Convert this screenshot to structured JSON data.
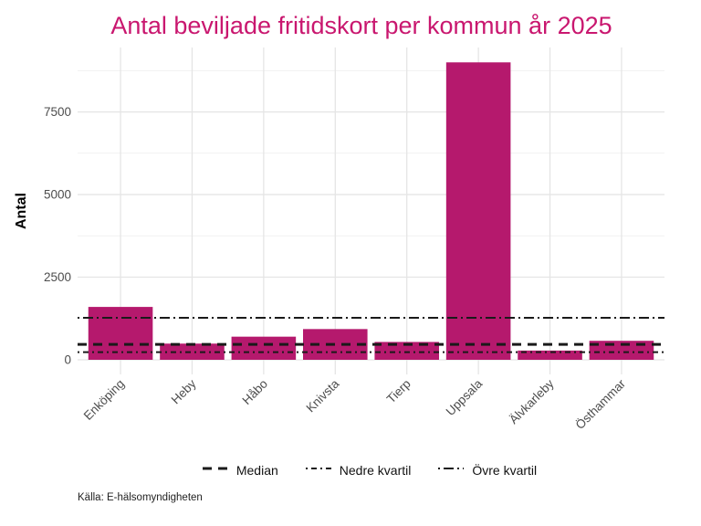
{
  "title": "Antal beviljade fritidskort per kommun år 2025",
  "source": "Källa: E-hälsomyndigheten",
  "colors": {
    "bar": "#b5196d",
    "title": "#c9176f",
    "grid_major": "#e5e5e5",
    "grid_minor": "#f1f1f1",
    "axis_text": "#4d4d4d",
    "reference_line": "#1a1a1a"
  },
  "chart_data": {
    "type": "bar",
    "title": "Antal beviljade fritidskort per kommun år 2025",
    "xlabel": "",
    "ylabel": "Antal",
    "categories": [
      "Enköping",
      "Heby",
      "Håbo",
      "Knivsta",
      "Tierp",
      "Uppsala",
      "Älvkarleby",
      "Östhammar"
    ],
    "values": [
      1600,
      490,
      700,
      930,
      540,
      9000,
      280,
      575
    ],
    "ylim": [
      0,
      9450
    ],
    "yticks": [
      0,
      2500,
      5000,
      7500
    ],
    "minor_gridlines": [
      1250,
      3750,
      6250,
      8750
    ],
    "grid": true,
    "legend_position": "bottom",
    "reference_lines": [
      {
        "label": "Median",
        "value": 465,
        "style": "dashed"
      },
      {
        "label": "Nedre kvartil",
        "value": 230,
        "style": "dotdash"
      },
      {
        "label": "Övre kvartil",
        "value": 1270,
        "style": "longdash-dot"
      }
    ]
  }
}
